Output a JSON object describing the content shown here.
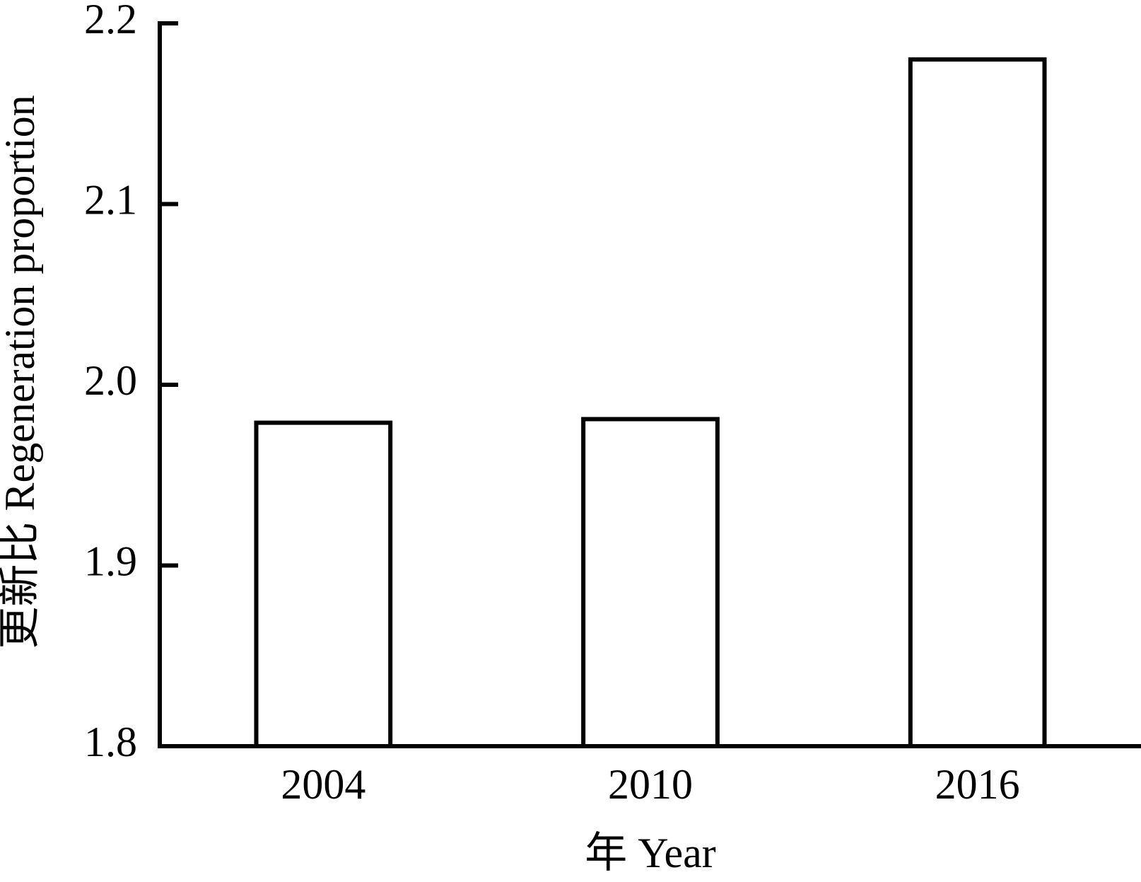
{
  "chart_data": {
    "type": "bar",
    "x_label": "年 Year",
    "y_label": "更新比 Regeneration proportion",
    "categories": [
      "2004",
      "2010",
      "2016"
    ],
    "values": [
      1.979,
      1.981,
      2.18
    ],
    "color": "#ffffff",
    "edgecolor": "#000000",
    "ylim": [
      1.8,
      2.2
    ],
    "yticks": [
      1.8,
      1.9,
      {
        "value": 2,
        "label": "2.0"
      },
      2.1,
      2.2
    ],
    "grid": false
  }
}
